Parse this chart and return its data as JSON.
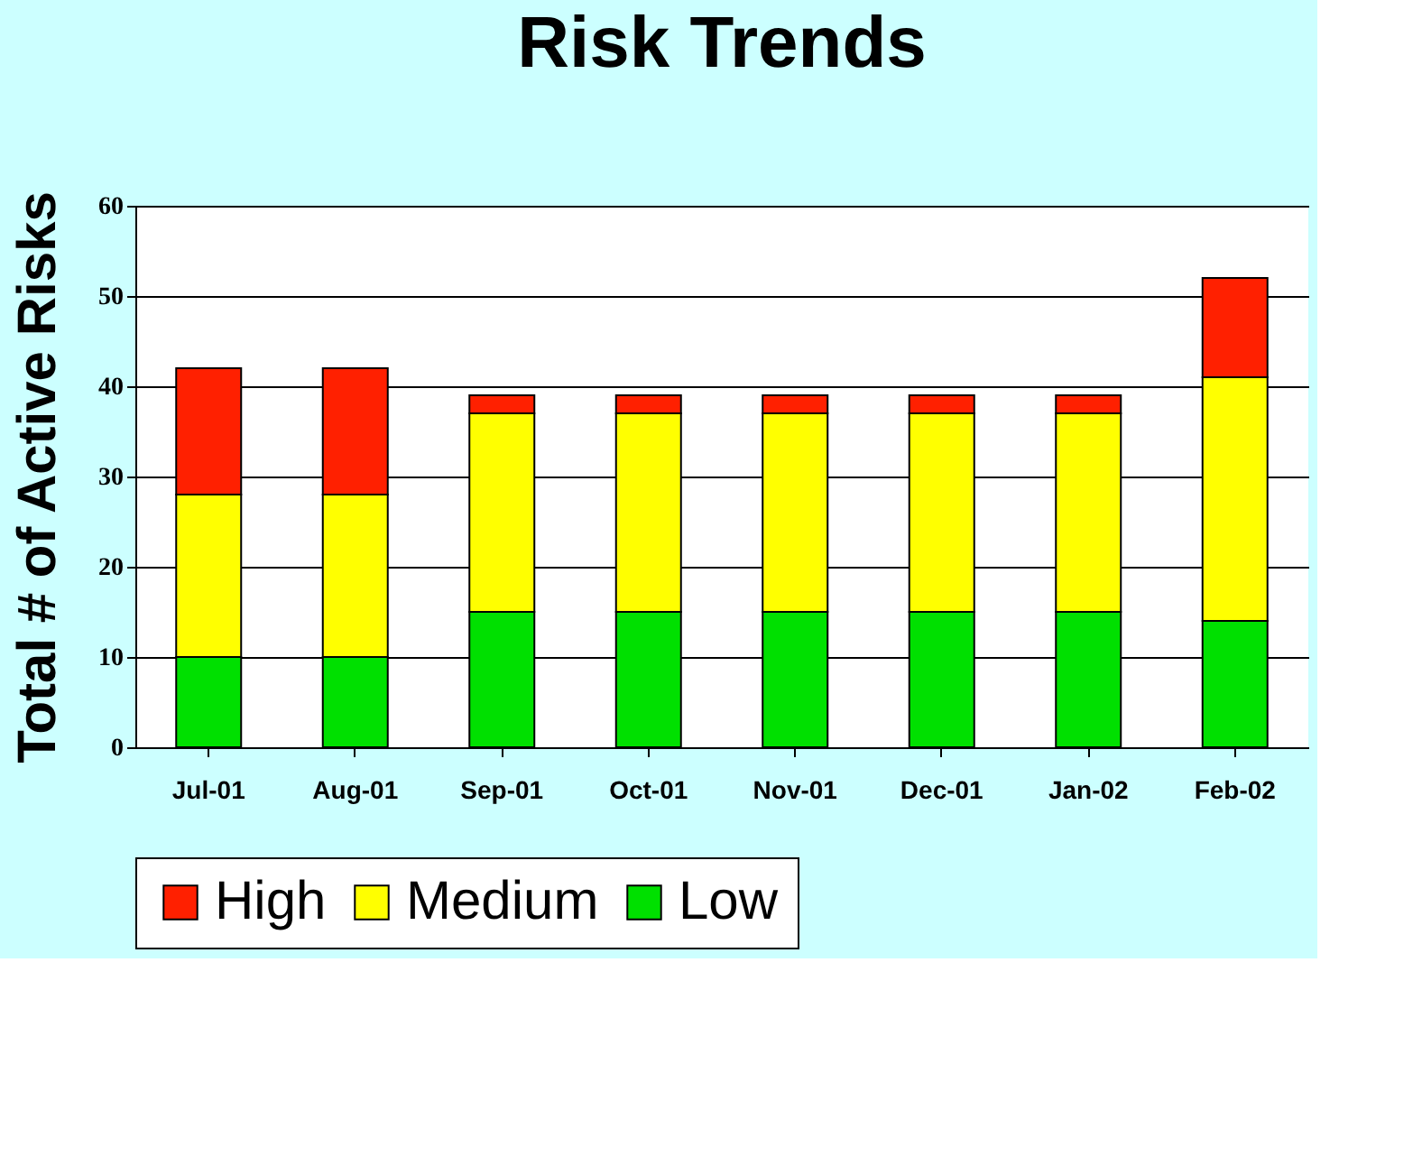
{
  "chart_data": {
    "type": "bar",
    "title": "Risk Trends",
    "ylabel": "Total # of Active Risks",
    "categories": [
      "Jul-01",
      "Aug-01",
      "Sep-01",
      "Oct-01",
      "Nov-01",
      "Dec-01",
      "Jan-02",
      "Feb-02"
    ],
    "stacked": true,
    "series": [
      {
        "name": "Low",
        "color": "#00e000",
        "values": [
          10,
          10,
          15,
          15,
          15,
          15,
          15,
          14
        ]
      },
      {
        "name": "Medium",
        "color": "#ffff00",
        "values": [
          18,
          18,
          22,
          22,
          22,
          22,
          22,
          27
        ]
      },
      {
        "name": "High",
        "color": "#ff2000",
        "values": [
          14,
          14,
          2,
          2,
          2,
          2,
          2,
          11
        ]
      }
    ],
    "ylim": [
      0,
      60
    ],
    "yticks": [
      0,
      10,
      20,
      30,
      40,
      50,
      60
    ],
    "grid": "y",
    "legend": "bottom"
  }
}
